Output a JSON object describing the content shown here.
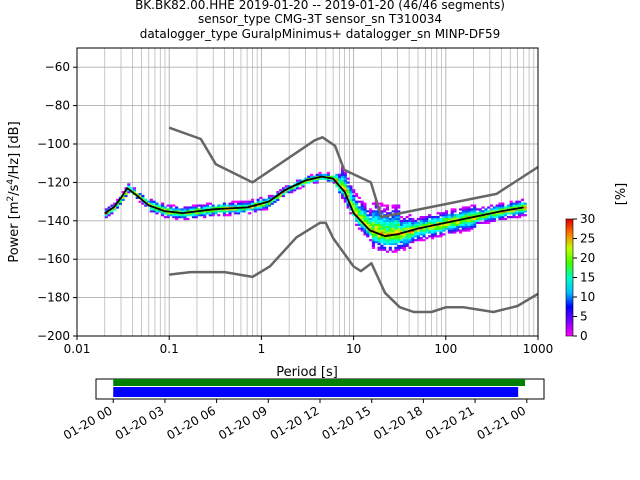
{
  "title_lines": [
    "BK.BK82.00.HHE   2019-01-20 -- 2019-01-20  (46/46 segments)",
    "sensor_type CMG-3T sensor_sn T310034",
    "datalogger_type GuralpMinimus+ datalogger_sn MINP-DF59"
  ],
  "chart_data": {
    "type": "heatmap",
    "xlabel": "Period [s]",
    "ylabel": "Power [m^2/s^4/Hz] [dB]",
    "xscale": "log",
    "xlim": [
      0.01,
      1000
    ],
    "ylim": [
      -200,
      -50
    ],
    "x_ticks": [
      "0.01",
      "0.1",
      "1",
      "10",
      "100",
      "1000"
    ],
    "y_ticks": [
      "-60",
      "-80",
      "-100",
      "-120",
      "-140",
      "-160",
      "-180",
      "-200"
    ],
    "grid": true,
    "colorbar": {
      "label": "[%]",
      "ticks": [
        "0",
        "5",
        "10",
        "15",
        "20",
        "25",
        "30"
      ],
      "range": [
        0,
        30
      ]
    },
    "colors": {
      "model_lines": "#666666",
      "mode_line": "#000000",
      "cmap_low": "#ff00ff",
      "cmap_high": "#e00000"
    },
    "nhnm": {
      "periods": [
        0.1,
        0.22,
        0.32,
        0.8,
        3.8,
        4.6,
        6.3,
        7.9,
        15.4,
        20,
        354.8,
        1000
      ],
      "power": [
        -91.5,
        -97.4,
        -110.5,
        -120,
        -98,
        -96.5,
        -101,
        -113.5,
        -120,
        -138,
        -126,
        -112
      ]
    },
    "nlnm": {
      "periods": [
        0.1,
        0.17,
        0.4,
        0.8,
        1.24,
        2.4,
        4.3,
        5,
        6,
        10,
        12,
        15.6,
        21.9,
        31.6,
        45,
        70,
        101,
        154,
        328,
        600,
        1000
      ],
      "power": [
        -168,
        -166.7,
        -166.7,
        -169.2,
        -163.7,
        -148.6,
        -141.1,
        -141.1,
        -149,
        -163.8,
        -166.2,
        -162.1,
        -177.5,
        -185,
        -187.5,
        -187.5,
        -185,
        -185,
        -187.5,
        -184.4,
        -178
      ]
    },
    "mode_curve": {
      "periods": [
        0.02,
        0.025,
        0.03,
        0.035,
        0.045,
        0.06,
        0.09,
        0.14,
        0.3,
        0.7,
        1.2,
        1.8,
        3,
        4.5,
        6,
        8,
        10,
        15,
        22,
        30,
        50,
        100,
        200,
        400,
        700
      ],
      "power": [
        -136,
        -133,
        -128,
        -123,
        -127,
        -132,
        -135,
        -136,
        -134,
        -133,
        -130,
        -124,
        -119,
        -117,
        -118,
        -125,
        -136,
        -145,
        -148,
        -147,
        -144,
        -141,
        -138,
        -135,
        -133
      ]
    },
    "timeline": {
      "tick_labels": [
        "01-20 00",
        "01-20 03",
        "01-20 06",
        "01-20 09",
        "01-20 12",
        "01-20 15",
        "01-20 18",
        "01-20 21",
        "01-21 00"
      ],
      "range_hours": [
        -1,
        25
      ],
      "data_available": {
        "start_hour": 0,
        "end_hour": 23.9,
        "color": "#008000"
      },
      "psd_segments": {
        "start_hour": 0,
        "end_hour": 23.5,
        "color": "#0000ff"
      }
    }
  }
}
